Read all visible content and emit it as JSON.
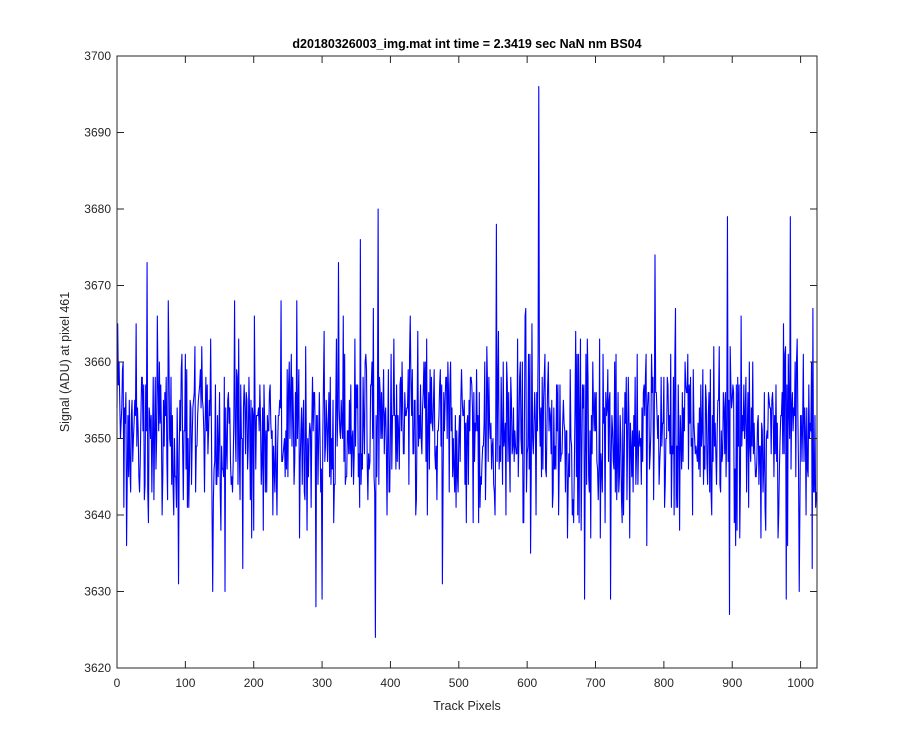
{
  "chart_data": {
    "type": "line",
    "title": "d20180326003_img.mat int time = 2.3419 sec  NaN nm BS04",
    "xlabel": "Track Pixels",
    "ylabel": "Signal (ADU) at pixel 461",
    "xlim": [
      0,
      1024
    ],
    "ylim": [
      3620,
      3700
    ],
    "xticks": [
      0,
      100,
      200,
      300,
      400,
      500,
      600,
      700,
      800,
      900,
      1000
    ],
    "yticks": [
      3620,
      3630,
      3640,
      3650,
      3660,
      3670,
      3680,
      3690,
      3700
    ],
    "grid": false,
    "series": [
      {
        "color": "#0000ff",
        "n_points": 1024,
        "mean": 3651,
        "spikes": [
          {
            "x": 617,
            "y": 3696
          },
          {
            "x": 378,
            "y": 3624
          },
          {
            "x": 382,
            "y": 3680
          },
          {
            "x": 356,
            "y": 3676
          },
          {
            "x": 555,
            "y": 3678
          },
          {
            "x": 893,
            "y": 3679
          },
          {
            "x": 985,
            "y": 3679
          },
          {
            "x": 787,
            "y": 3674
          },
          {
            "x": 324,
            "y": 3673
          },
          {
            "x": 44,
            "y": 3673
          },
          {
            "x": 896,
            "y": 3627
          },
          {
            "x": 291,
            "y": 3628
          },
          {
            "x": 300,
            "y": 3629
          },
          {
            "x": 684,
            "y": 3629
          },
          {
            "x": 722,
            "y": 3629
          },
          {
            "x": 90,
            "y": 3631
          },
          {
            "x": 140,
            "y": 3630
          },
          {
            "x": 158,
            "y": 3630
          },
          {
            "x": 184,
            "y": 3633
          },
          {
            "x": 476,
            "y": 3631
          },
          {
            "x": 979,
            "y": 3629
          },
          {
            "x": 998,
            "y": 3630
          },
          {
            "x": 1018,
            "y": 3667
          },
          {
            "x": 1008,
            "y": 3640
          }
        ]
      }
    ]
  }
}
